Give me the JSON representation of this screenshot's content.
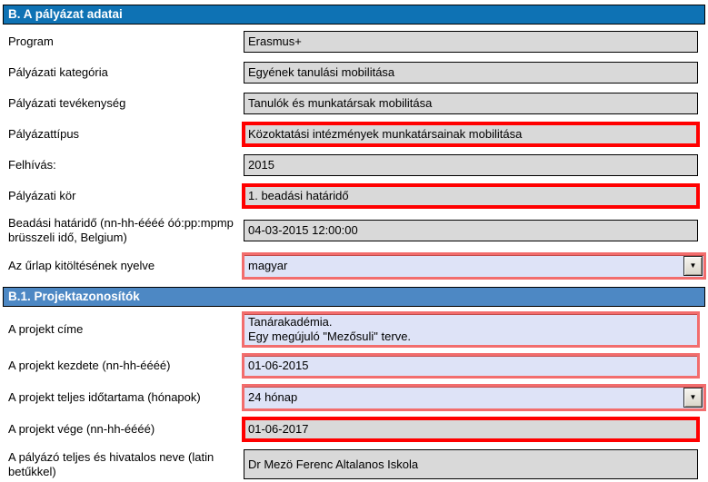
{
  "colors": {
    "header_primary": "#0e72b4",
    "header_secondary": "#4d88c4",
    "readonly_field_bg": "#d9d9d9",
    "editable_field_bg": "#dee3f7",
    "required_border": "#ff0000",
    "editable_required_border": "#f26d6d"
  },
  "sections": [
    {
      "title": "B. A pályázat adatai",
      "rows": [
        {
          "label": "Program",
          "value": "Erasmus+",
          "type": "readonly"
        },
        {
          "label": "Pályázati kategória",
          "value": "Egyének tanulási mobilitása",
          "type": "readonly"
        },
        {
          "label": "Pályázati tevékenység",
          "value": "Tanulók és munkatársak mobilitása",
          "type": "readonly"
        },
        {
          "label": "Pályázattípus",
          "value": "Közoktatási intézmények munkatársainak mobilitása",
          "type": "readonly-required"
        },
        {
          "label": "Felhívás:",
          "value": "2015",
          "type": "readonly"
        },
        {
          "label": "Pályázati kör",
          "value": "1. beadási határidő",
          "type": "readonly-required"
        },
        {
          "label": "Beadási határidő (nn-hh-éééé óó:pp:mpmp brüsszeli idő, Belgium)",
          "value": "04-03-2015 12:00:00",
          "type": "readonly"
        },
        {
          "label": "Az űrlap kitöltésének nyelve",
          "value": "magyar",
          "type": "select"
        }
      ]
    },
    {
      "title": "B.1. Projektazonosítók",
      "rows": [
        {
          "label": "A projekt címe",
          "value": "Tanárakadémia.\nEgy megújuló \"Mezősuli\" terve.",
          "type": "input"
        },
        {
          "label": "A projekt kezdete (nn-hh-éééé)",
          "value": "01-06-2015",
          "type": "input"
        },
        {
          "label": "A projekt teljes időtartama (hónapok)",
          "value": "24 hónap",
          "type": "select"
        },
        {
          "label": "A projekt vége (nn-hh-éééé)",
          "value": "01-06-2017",
          "type": "readonly-required"
        },
        {
          "label": "A pályázó teljes és hivatalos neve (latin betűkkel)",
          "value": "Dr Mezö Ferenc Altalanos Iskola",
          "type": "readonly"
        }
      ]
    }
  ]
}
